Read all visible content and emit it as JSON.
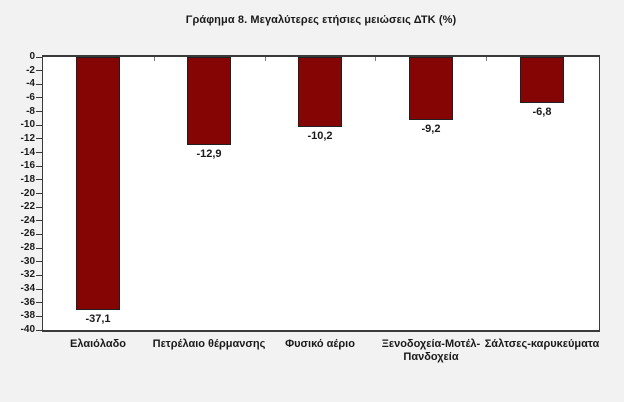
{
  "chart_data": {
    "type": "bar",
    "title": "Γράφημα 8. Μεγαλύτερες ετήσιες μειώσεις ΔΤΚ (%)",
    "categories": [
      "Ελαιόλαδο",
      "Πετρέλαιο θέρμανσης",
      "Φυσικό αέριο",
      "Ξενοδοχεία-Μοτέλ-Πανδοχεία",
      "Σάλτσες-καρυκεύματα"
    ],
    "values": [
      -37.1,
      -12.9,
      -10.2,
      -9.2,
      -6.8
    ],
    "value_labels": [
      "-37,1",
      "-12,9",
      "-10,2",
      "-9,2",
      "-6,8"
    ],
    "xlabel": "",
    "ylabel": "",
    "ylim": [
      -40,
      0
    ],
    "y_tick_step": 2,
    "y_tick_labels": [
      "0",
      "-2",
      "-4",
      "-6",
      "-8",
      "-10",
      "-12",
      "-14",
      "-16",
      "-18",
      "-20",
      "-22",
      "-24",
      "-26",
      "-28",
      "-30",
      "-32",
      "-34",
      "-36",
      "-38",
      "-40"
    ],
    "grid": false,
    "legend": "none",
    "bar_color": "#850404",
    "bar_border_color": "#202020",
    "plot_bg_color": "#ffffff",
    "page_bg_color": "#f2f2f2",
    "axis_color": "#3a3a3a"
  }
}
